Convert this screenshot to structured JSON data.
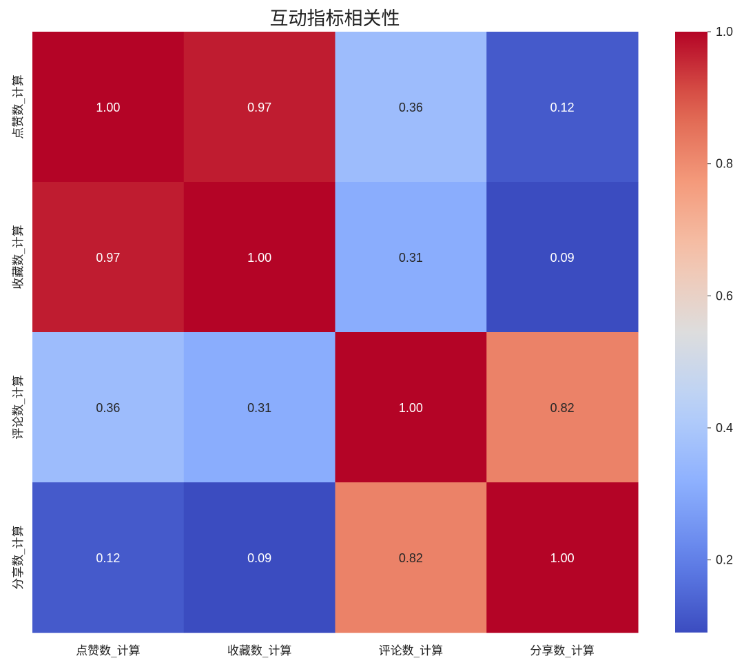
{
  "chart_data": {
    "type": "heatmap",
    "title": "互动指标相关性",
    "row_labels": [
      "点赞数_计算",
      "收藏数_计算",
      "评论数_计算",
      "分享数_计算"
    ],
    "col_labels": [
      "点赞数_计算",
      "收藏数_计算",
      "评论数_计算",
      "分享数_计算"
    ],
    "values": [
      [
        1.0,
        0.97,
        0.36,
        0.12
      ],
      [
        0.97,
        1.0,
        0.31,
        0.09
      ],
      [
        0.36,
        0.31,
        1.0,
        0.82
      ],
      [
        0.12,
        0.09,
        0.82,
        1.0
      ]
    ],
    "value_labels": [
      [
        "1.00",
        "0.97",
        "0.36",
        "0.12"
      ],
      [
        "0.97",
        "1.00",
        "0.31",
        "0.09"
      ],
      [
        "0.36",
        "0.31",
        "1.00",
        "0.82"
      ],
      [
        "0.12",
        "0.09",
        "0.82",
        "1.00"
      ]
    ],
    "colormap": "coolwarm",
    "vmin": 0.09,
    "vmax": 1.0,
    "colorbar": {
      "ticks": [
        0.2,
        0.4,
        0.6,
        0.8,
        1.0
      ],
      "tick_labels": [
        "0.2",
        "0.4",
        "0.6",
        "0.8",
        "1.0"
      ]
    },
    "annotation_colors": {
      "light": "#ffffff",
      "dark": "#262626"
    }
  }
}
